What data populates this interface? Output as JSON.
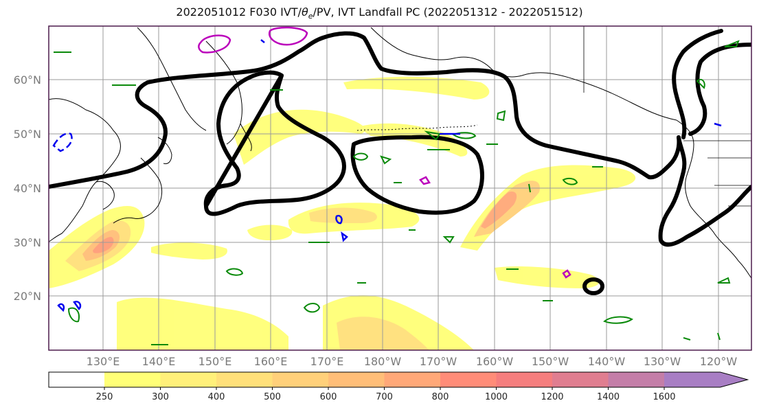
{
  "title": {
    "prefix": "2022051012 F030 IVT/",
    "theta_symbol": "θ",
    "theta_sub": "e",
    "suffix": "/PV, IVT Landfall PC (2022051312 - 2022051512)"
  },
  "lat_labels": [
    "60°N",
    "50°N",
    "40°N",
    "30°N",
    "20°N"
  ],
  "lon_labels": [
    "130°E",
    "140°E",
    "150°E",
    "160°E",
    "170°E",
    "180°W",
    "170°W",
    "160°W",
    "150°W",
    "140°W",
    "130°W",
    "120°W"
  ],
  "colorbar": {
    "labels": [
      "250",
      "300",
      "400",
      "500",
      "600",
      "700",
      "800",
      "1000",
      "1200",
      "1400",
      "1600"
    ],
    "colors": [
      "#ffff77",
      "#fff07a",
      "#ffe07a",
      "#ffd07a",
      "#ffbe78",
      "#ffa878",
      "#ff8c78",
      "#f57e7e",
      "#e07e90",
      "#c47ea8",
      "#a87ec4"
    ]
  },
  "colors": {
    "contour_black": "#000000",
    "theta_green": "#0a8a0a",
    "pv_blue": "#0000ee",
    "pv_magenta": "#bb00bb",
    "frame": "#4b1a4b"
  }
}
